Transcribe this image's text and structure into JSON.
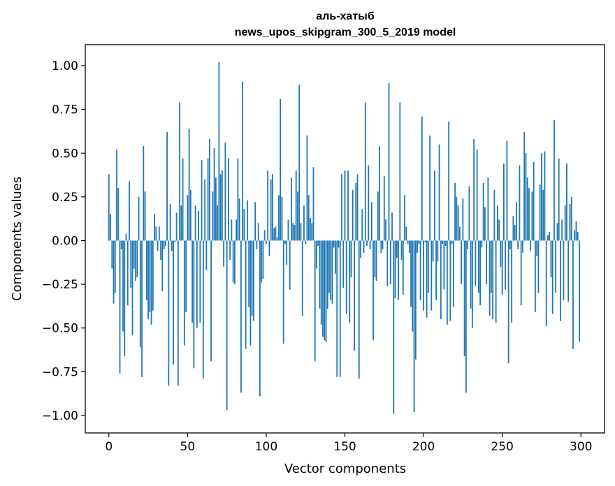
{
  "chart_data": {
    "type": "bar",
    "title_line1": "аль-хатыб",
    "title_line2": "news_upos_skipgram_300_5_2019 model",
    "xlabel": "Vector components",
    "ylabel": "Components values",
    "xlim": [
      -15,
      315
    ],
    "ylim": [
      -1.1,
      1.12
    ],
    "xticks": [
      0,
      50,
      100,
      150,
      200,
      250,
      300
    ],
    "yticks": [
      -1.0,
      -0.75,
      -0.5,
      -0.25,
      0.0,
      0.25,
      0.5,
      0.75,
      1.0
    ],
    "ytick_labels": [
      "−1.00",
      "−0.75",
      "−0.50",
      "−0.25",
      "0.00",
      "0.25",
      "0.50",
      "0.75",
      "1.00"
    ],
    "bar_color": "#1f77b4",
    "values": [
      0.38,
      0.15,
      -0.16,
      -0.36,
      -0.3,
      0.52,
      0.3,
      -0.76,
      -0.05,
      -0.52,
      -0.66,
      0.04,
      -0.37,
      0.34,
      -0.27,
      -0.54,
      -0.16,
      -0.23,
      -0.21,
      0.25,
      -0.61,
      -0.78,
      0.54,
      0.28,
      -0.34,
      -0.45,
      -0.41,
      -0.48,
      -0.4,
      0.15,
      0.08,
      -0.06,
      0.08,
      -0.11,
      -0.29,
      -0.05,
      -0.03,
      0.62,
      -0.83,
      0.21,
      -0.06,
      -0.71,
      -0.01,
      0.16,
      -0.83,
      0.79,
      0.2,
      0.47,
      -0.6,
      -0.41,
      0.26,
      0.64,
      0.29,
      -0.47,
      -0.73,
      0.2,
      -0.5,
      0.17,
      -0.47,
      0.46,
      -0.79,
      0.35,
      -0.17,
      0.47,
      0.58,
      -0.69,
      0.28,
      0.53,
      0.36,
      0.2,
      1.02,
      0.38,
      0.4,
      -0.15,
      0.56,
      -0.97,
      0.47,
      -0.11,
      0.12,
      -0.24,
      -0.25,
      0.12,
      0.47,
      0.24,
      -0.87,
      0.91,
      0.18,
      -0.62,
      0.23,
      -0.38,
      -0.6,
      -0.43,
      -0.46,
      0.22,
      -0.05,
      0.1,
      -0.89,
      -0.24,
      -0.22,
      0.06,
      -0.02,
      0.4,
      -0.09,
      0.35,
      0.38,
      0.07,
      0.08,
      0.02,
      0.26,
      0.81,
      0.25,
      -0.59,
      -0.02,
      -0.14,
      0.12,
      -0.28,
      0.36,
      0.1,
      0.09,
      0.4,
      0.28,
      0.89,
      0.1,
      -0.43,
      0.2,
      -0.02,
      0.6,
      0.26,
      0.13,
      0.1,
      0.42,
      -0.69,
      -0.16,
      -0.03,
      -0.39,
      -0.48,
      -0.55,
      -0.57,
      -0.58,
      -0.39,
      -0.3,
      -0.34,
      -0.36,
      -0.04,
      -0.19,
      -0.78,
      -0.04,
      -0.78,
      0.38,
      -0.27,
      0.4,
      -0.42,
      0.4,
      -0.47,
      -0.21,
      0.29,
      -0.63,
      0.33,
      0.38,
      -0.79,
      -0.1,
      0.18,
      -0.07,
      0.79,
      -0.03,
      0.43,
      -0.05,
      0.22,
      -0.57,
      -0.21,
      -0.23,
      0.28,
      0.54,
      -0.07,
      -0.05,
      0.37,
      0.12,
      -0.26,
      0.9,
      -0.25,
      0.16,
      -0.99,
      -0.33,
      -0.1,
      -0.34,
      0.79,
      -0.11,
      -0.31,
      0.26,
      0.08,
      -0.02,
      -0.07,
      -0.38,
      -0.52,
      -0.98,
      -0.68,
      -0.07,
      -0.02,
      -0.34,
      0.71,
      -0.4,
      -0.01,
      -0.44,
      -0.3,
      0.6,
      -0.4,
      -0.12,
      0.4,
      -0.34,
      -0.12,
      0.55,
      -0.45,
      -0.02,
      -0.28,
      -0.03,
      -0.48,
      0.68,
      -0.46,
      -0.02,
      -0.38,
      0.33,
      0.25,
      0.2,
      0.08,
      -0.25,
      0.24,
      -0.66,
      -0.87,
      -0.05,
      0.31,
      -0.39,
      -0.5,
      0.58,
      -0.26,
      0.52,
      -0.3,
      -0.37,
      -0.04,
      0.33,
      0.19,
      -0.25,
      0.36,
      -0.43,
      -0.3,
      -0.45,
      0.29,
      -0.47,
      0.2,
      0.12,
      -0.15,
      -0.31,
      0.44,
      -0.28,
      0.57,
      -0.7,
      -0.05,
      -0.47,
      0.14,
      0.09,
      0.22,
      -0.05,
      0.43,
      -0.37,
      -0.07,
      0.62,
      0.5,
      0.36,
      0.3,
      -0.06,
      0.28,
      0.45,
      -0.41,
      -0.09,
      -0.3,
      0.32,
      0.5,
      0.29,
      0.51,
      -0.49,
      0.03,
      0.05,
      -0.21,
      -0.42,
      0.69,
      -0.3,
      0.1,
      0.47,
      -0.46,
      0.12,
      -0.34,
      0.2,
      0.44,
      -0.35,
      0.21,
      0.25,
      -0.62,
      0.06,
      0.11,
      0.05,
      -0.58
    ]
  }
}
